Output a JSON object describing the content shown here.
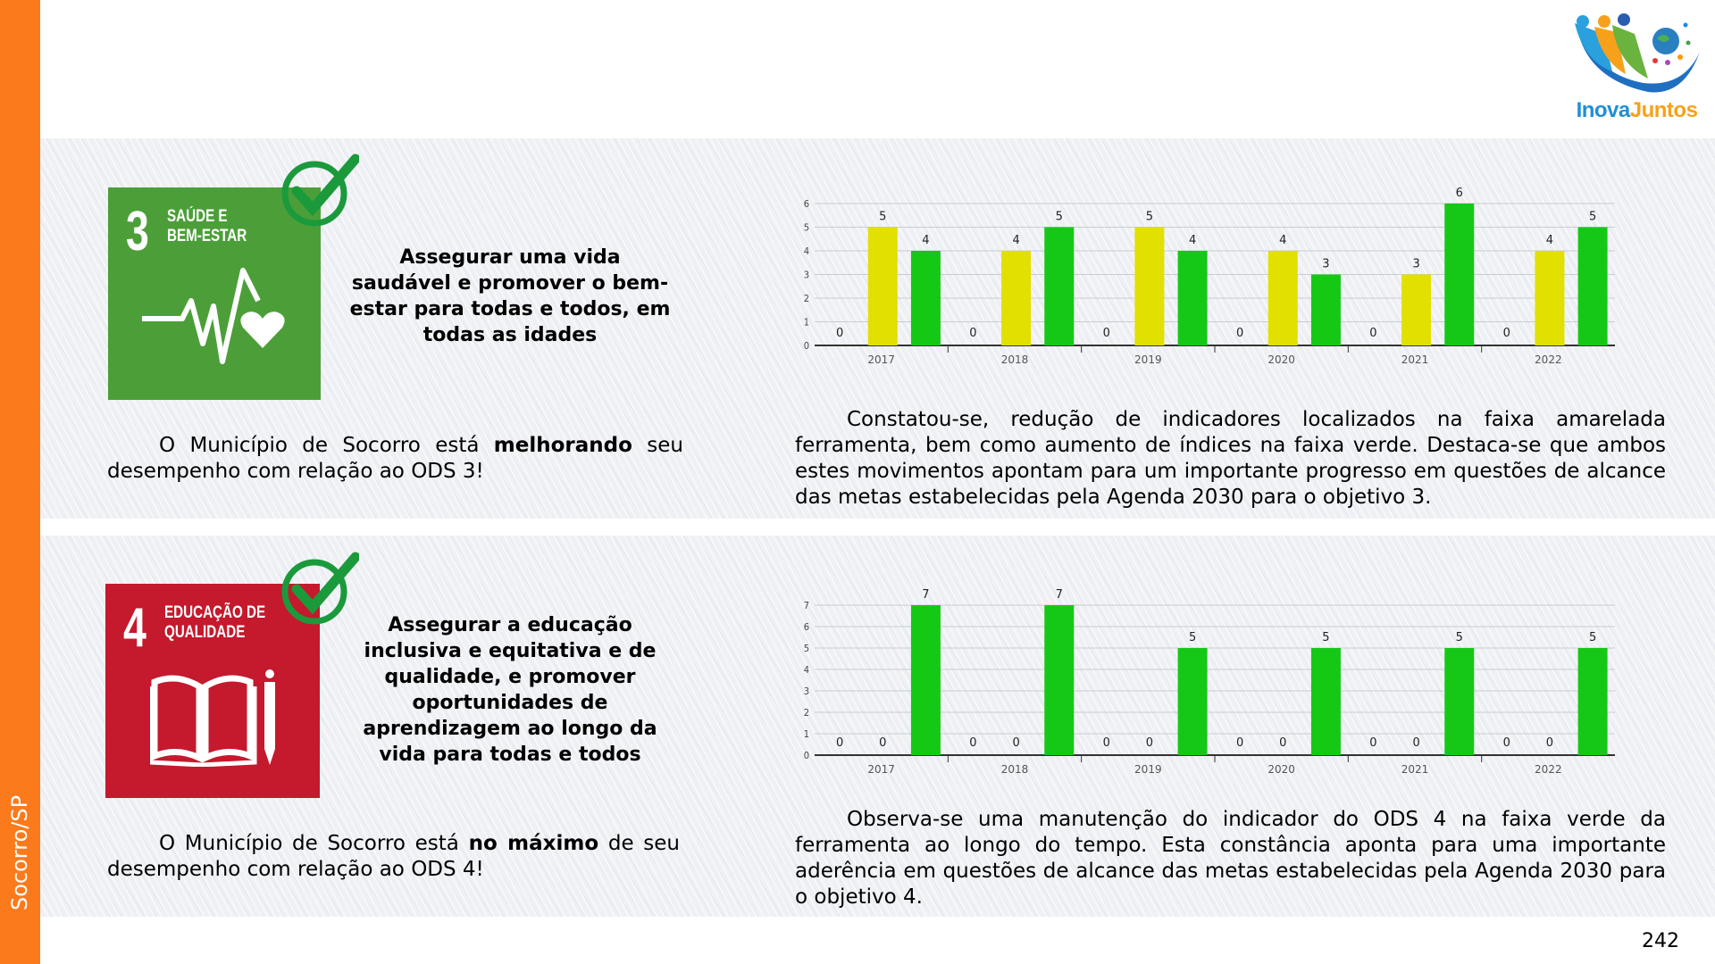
{
  "sidebar": {
    "label": "Socorro/SP",
    "color": "#fb7a1c"
  },
  "logo": {
    "text_part1": "Inova",
    "text_part2": "Juntos"
  },
  "page_number": "242",
  "sections": [
    {
      "sdg": {
        "number": "3",
        "title": "SAÚDE E\nBEM-ESTAR",
        "color": "#4c9f38",
        "icon": "heartbeat-heart-icon"
      },
      "goal": "Assegurar uma vida saudável e promover o bem-estar para todas e todos, em todas as idades",
      "status_before": "O Município de Socorro está ",
      "status_bold": "melhorando",
      "status_after": " seu desempenho com relação ao ODS 3!",
      "analysis": "Constatou-se, redução de indicadores localizados na faixa amarelada ferramenta, bem como aumento de índices na faixa verde. Destaca-se que ambos estes movimentos apontam para um importante progresso em questões de alcance das metas estabelecidas pela Agenda 2030 para o objetivo 3."
    },
    {
      "sdg": {
        "number": "4",
        "title": "EDUCAÇÃO DE\nQUALIDADE",
        "color": "#c5192d",
        "icon": "book-pencil-icon"
      },
      "goal": "Assegurar a educação inclusiva e equitativa e de qualidade, e promover oportunidades de aprendizagem ao longo da vida para todas e todos",
      "status_before": "O Município de Socorro está ",
      "status_bold": "no máximo",
      "status_after": " de seu desempenho com relação ao ODS 4!",
      "analysis": "Observa-se uma manutenção do indicador do ODS 4 na faixa verde da ferramenta ao longo do tempo. Esta constância aponta para uma importante aderência em questões de alcance das metas estabelecidas pela Agenda 2030 para o objetivo 4."
    }
  ],
  "chart_data": [
    {
      "type": "bar",
      "title": "",
      "xlabel": "",
      "ylabel": "",
      "ylim": [
        0,
        6
      ],
      "yticks": [
        0,
        1,
        2,
        3,
        4,
        5,
        6
      ],
      "grid": true,
      "categories": [
        "2017",
        "2018",
        "2019",
        "2020",
        "2021",
        "2022"
      ],
      "series": [
        {
          "name": "red",
          "color": "#e02020",
          "values": [
            0,
            0,
            0,
            0,
            0,
            0
          ]
        },
        {
          "name": "yellow",
          "color": "#e2e000",
          "values": [
            5,
            4,
            5,
            4,
            3,
            4
          ]
        },
        {
          "name": "green",
          "color": "#16c816",
          "values": [
            4,
            5,
            4,
            3,
            6,
            5
          ]
        }
      ]
    },
    {
      "type": "bar",
      "title": "",
      "xlabel": "",
      "ylabel": "",
      "ylim": [
        0,
        7
      ],
      "yticks": [
        0,
        1,
        2,
        3,
        4,
        5,
        6,
        7
      ],
      "grid": true,
      "categories": [
        "2017",
        "2018",
        "2019",
        "2020",
        "2021",
        "2022"
      ],
      "series": [
        {
          "name": "red",
          "color": "#e02020",
          "values": [
            0,
            0,
            0,
            0,
            0,
            0
          ]
        },
        {
          "name": "yellow",
          "color": "#e2e000",
          "values": [
            0,
            0,
            0,
            0,
            0,
            0
          ]
        },
        {
          "name": "green",
          "color": "#16c816",
          "values": [
            7,
            7,
            5,
            5,
            5,
            5
          ]
        }
      ]
    }
  ]
}
